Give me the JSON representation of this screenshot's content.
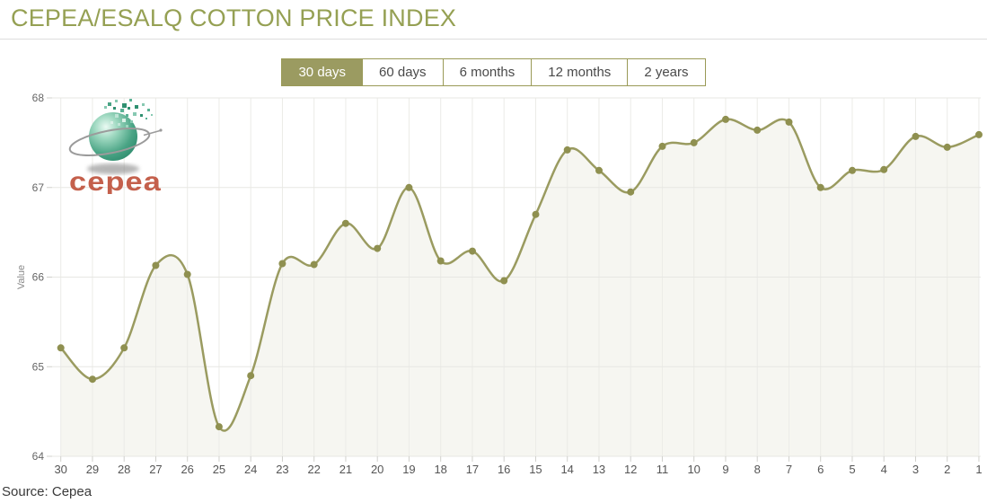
{
  "title": "CEPEA/ESALQ COTTON PRICE INDEX",
  "source": "Source: Cepea",
  "logo_text": "cepea",
  "range_buttons": [
    {
      "label": "30 days",
      "active": true
    },
    {
      "label": "60 days",
      "active": false
    },
    {
      "label": "6 months",
      "active": false
    },
    {
      "label": "12 months",
      "active": false
    },
    {
      "label": "2 years",
      "active": false
    }
  ],
  "colors": {
    "title_text": "#95a053",
    "button_border": "#9a9a57",
    "active_button_bg": "#9b9b61",
    "active_button_text": "#ffffff",
    "button_text": "#4a4a4a",
    "line": "#9a9b60",
    "marker": "#8f9050",
    "area_fill": "rgba(154,155,96,0.09)",
    "h_gridline": "#e7e7e3",
    "v_gridline": "#ebebe7",
    "tick": "#d0d0cc",
    "y_axis_text": "#666666",
    "x_axis_text": "#555555",
    "value_label_text": "#888888",
    "source_text": "#3a3a3a",
    "logo_text_color": "#c4604c"
  },
  "chart_data": {
    "type": "line",
    "title": "CEPEA/ESALQ COTTON PRICE INDEX",
    "xlabel": "",
    "ylabel": "Value",
    "x": [
      30,
      29,
      28,
      27,
      26,
      25,
      24,
      23,
      22,
      21,
      20,
      19,
      18,
      17,
      16,
      15,
      14,
      13,
      12,
      11,
      10,
      9,
      8,
      7,
      6,
      5,
      4,
      3,
      2,
      1
    ],
    "values": [
      65.21,
      64.86,
      65.21,
      66.13,
      66.03,
      64.33,
      64.9,
      66.15,
      66.14,
      66.6,
      66.32,
      67.0,
      66.18,
      66.29,
      65.96,
      66.7,
      67.42,
      67.19,
      66.95,
      67.46,
      67.5,
      67.76,
      67.64,
      67.73,
      67.0,
      67.19,
      67.2,
      67.57,
      67.45,
      67.59
    ],
    "ylim": [
      64,
      68
    ],
    "yticks": [
      64,
      65,
      66,
      67,
      68
    ],
    "grid": true,
    "legend": false,
    "smooth": true,
    "markers": true
  }
}
